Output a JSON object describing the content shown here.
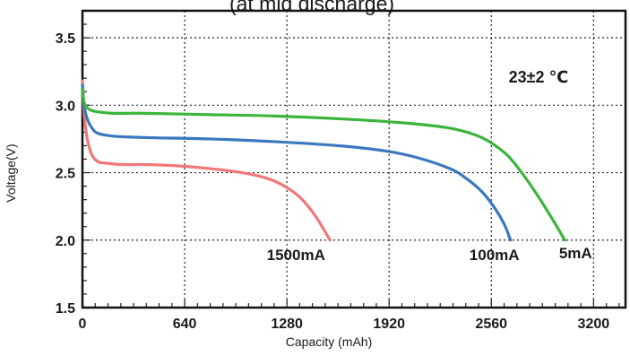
{
  "chart_data": {
    "type": "line",
    "title": "(at mid discharge)",
    "xlabel": "Capacity (mAh)",
    "ylabel": "Voltage(V)",
    "xlim": [
      0,
      3400
    ],
    "ylim": [
      1.5,
      3.7
    ],
    "xticks": [
      "0",
      "640",
      "1280",
      "1920",
      "2560",
      "3200"
    ],
    "yticks": [
      "1.5",
      "2.0",
      "2.5",
      "3.0",
      "3.5"
    ],
    "grid": true,
    "annotation": "23±2 ℃",
    "series": [
      {
        "name": "1500mA",
        "color": "#f07878",
        "x": [
          0,
          10,
          30,
          60,
          100,
          150,
          250,
          400,
          600,
          800,
          1000,
          1150,
          1250,
          1350,
          1420,
          1480,
          1520,
          1550
        ],
        "y": [
          3.18,
          2.95,
          2.75,
          2.63,
          2.58,
          2.57,
          2.56,
          2.56,
          2.55,
          2.53,
          2.5,
          2.46,
          2.41,
          2.33,
          2.24,
          2.14,
          2.06,
          2.0
        ]
      },
      {
        "name": "100mA",
        "color": "#3a78bf",
        "x": [
          0,
          10,
          30,
          60,
          100,
          200,
          400,
          800,
          1200,
          1600,
          1900,
          2100,
          2300,
          2400,
          2500,
          2580,
          2640,
          2680
        ],
        "y": [
          3.15,
          3.0,
          2.9,
          2.83,
          2.79,
          2.77,
          2.76,
          2.75,
          2.73,
          2.7,
          2.66,
          2.61,
          2.53,
          2.46,
          2.36,
          2.24,
          2.12,
          2.0
        ]
      },
      {
        "name": "5mA",
        "color": "#3cb53c",
        "x": [
          0,
          10,
          30,
          60,
          100,
          200,
          400,
          800,
          1200,
          1600,
          2000,
          2300,
          2500,
          2650,
          2750,
          2850,
          2950,
          3020
        ],
        "y": [
          3.12,
          3.02,
          2.98,
          2.96,
          2.95,
          2.94,
          2.94,
          2.93,
          2.92,
          2.9,
          2.87,
          2.83,
          2.76,
          2.64,
          2.5,
          2.33,
          2.14,
          2.0
        ]
      }
    ]
  }
}
